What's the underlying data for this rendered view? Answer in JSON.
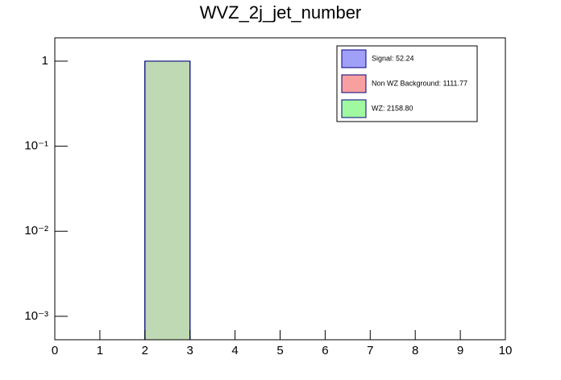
{
  "chart_data": {
    "type": "histogram",
    "title": "WVZ_2j_jet_number",
    "bins": [
      0,
      1,
      2,
      3,
      4,
      5,
      6,
      7,
      8,
      9,
      10
    ],
    "series": [
      {
        "name": "Signal: 52.24",
        "color": "#a0a0f8",
        "values": [
          0,
          0,
          1,
          0,
          0,
          0,
          0,
          0,
          0,
          0
        ]
      },
      {
        "name": "Non WZ Background: 1111.77",
        "color": "#f8a0a0",
        "values": [
          0,
          0,
          1,
          0,
          0,
          0,
          0,
          0,
          0,
          0
        ]
      },
      {
        "name": "WZ: 2158.80",
        "color": "#a0f8a0",
        "values": [
          0,
          0,
          1,
          0,
          0,
          0,
          0,
          0,
          0,
          0
        ]
      }
    ],
    "xlim": [
      0,
      10
    ],
    "xticks": [
      0,
      1,
      2,
      3,
      4,
      5,
      6,
      7,
      8,
      9,
      10
    ],
    "ylim": [
      0.00053,
      1.88
    ],
    "log_y": true,
    "yticks": [
      {
        "value": 0.001,
        "label": "10⁻³"
      },
      {
        "value": 0.01,
        "label": "10⁻²"
      },
      {
        "value": 0.1,
        "label": "10⁻¹"
      },
      1
    ],
    "legend": "upper right"
  }
}
